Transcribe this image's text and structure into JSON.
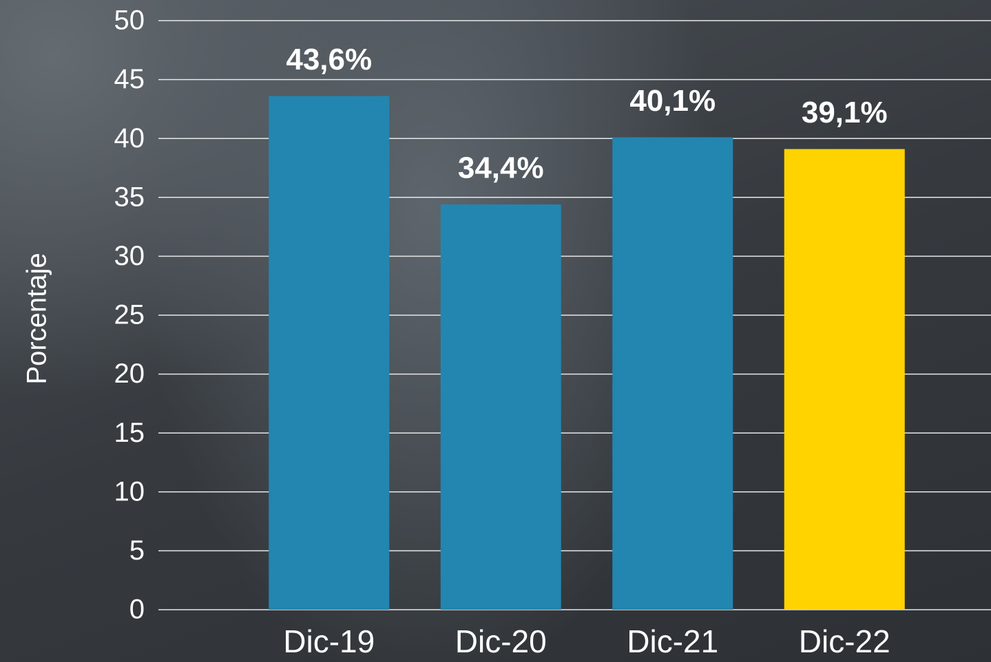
{
  "chart_data": {
    "type": "bar",
    "y_axis_label": "Porcentaje",
    "categories": [
      "Dic-19",
      "Dic-20",
      "Dic-21",
      "Dic-22"
    ],
    "values": [
      43.6,
      34.4,
      40.1,
      39.1
    ],
    "value_labels": [
      "43,6%",
      "34,4%",
      "40,1%",
      "39,1%"
    ],
    "colors": [
      "#2386b0",
      "#2386b0",
      "#2386b0",
      "#ffd300"
    ],
    "ylim": [
      0,
      50
    ],
    "yticks": [
      0,
      5,
      10,
      15,
      20,
      25,
      30,
      35,
      40,
      45,
      50
    ],
    "grid": true
  }
}
